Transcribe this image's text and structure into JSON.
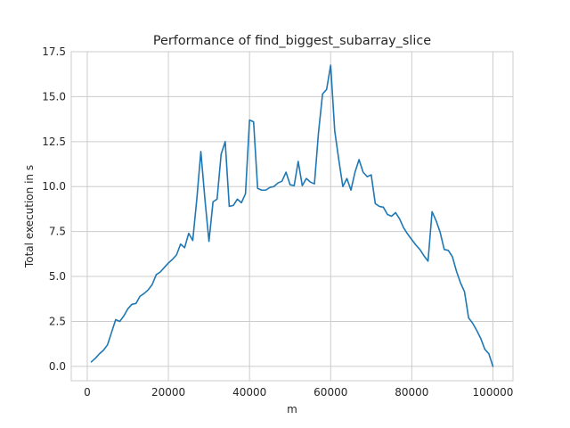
{
  "chart_data": {
    "type": "line",
    "title": "Performance of find_biggest_subarray_slice",
    "xlabel": "m",
    "ylabel": "Total execution in s",
    "xlim": [
      -3950,
      104950
    ],
    "ylim": [
      -0.8,
      17.5
    ],
    "x_ticks": [
      0,
      20000,
      40000,
      60000,
      80000,
      100000
    ],
    "x_tick_labels": [
      "0",
      "20000",
      "40000",
      "60000",
      "80000",
      "100000"
    ],
    "y_ticks": [
      0.0,
      2.5,
      5.0,
      7.5,
      10.0,
      12.5,
      15.0,
      17.5
    ],
    "y_tick_labels": [
      "0.0",
      "2.5",
      "5.0",
      "7.5",
      "10.0",
      "12.5",
      "15.0",
      "17.5"
    ],
    "grid": true,
    "style": "whitegrid",
    "series": [
      {
        "color": "#1f77b4",
        "x": [
          1000,
          2000,
          3000,
          4000,
          5000,
          6000,
          7000,
          8000,
          9000,
          10000,
          11000,
          12000,
          13000,
          14000,
          15000,
          16000,
          17000,
          18000,
          19000,
          20000,
          21000,
          22000,
          23000,
          24000,
          25000,
          26000,
          27000,
          28000,
          29000,
          30000,
          31000,
          32000,
          33000,
          34000,
          35000,
          36000,
          37000,
          38000,
          39000,
          40000,
          41000,
          42000,
          43000,
          44000,
          45000,
          46000,
          47000,
          48000,
          49000,
          50000,
          51000,
          52000,
          53000,
          54000,
          55000,
          56000,
          57000,
          58000,
          59000,
          60000,
          61000,
          62000,
          63000,
          64000,
          65000,
          66000,
          67000,
          68000,
          69000,
          70000,
          71000,
          72000,
          73000,
          74000,
          75000,
          76000,
          77000,
          78000,
          79000,
          80000,
          81000,
          82000,
          83000,
          84000,
          85000,
          86000,
          87000,
          88000,
          89000,
          90000,
          91000,
          92000,
          93000,
          94000,
          95000,
          96000,
          97000,
          98000,
          99000,
          100000
        ],
        "y": [
          0.25,
          0.45,
          0.7,
          0.9,
          1.2,
          1.9,
          2.6,
          2.5,
          2.8,
          3.2,
          3.45,
          3.5,
          3.9,
          4.05,
          4.25,
          4.55,
          5.1,
          5.25,
          5.5,
          5.75,
          5.95,
          6.2,
          6.8,
          6.6,
          7.4,
          7.0,
          9.3,
          11.95,
          9.3,
          6.95,
          9.15,
          9.3,
          11.8,
          12.5,
          8.9,
          8.95,
          9.3,
          9.1,
          9.6,
          13.7,
          13.6,
          9.9,
          9.8,
          9.8,
          9.95,
          10.0,
          10.2,
          10.3,
          10.8,
          10.1,
          10.05,
          11.4,
          10.05,
          10.45,
          10.25,
          10.15,
          13.0,
          15.15,
          15.4,
          16.75,
          13.1,
          11.5,
          10.0,
          10.45,
          9.8,
          10.8,
          11.5,
          10.8,
          10.55,
          10.65,
          9.05,
          8.9,
          8.85,
          8.45,
          8.35,
          8.55,
          8.2,
          7.7,
          7.35,
          7.05,
          6.75,
          6.5,
          6.15,
          5.85,
          8.6,
          8.1,
          7.45,
          6.5,
          6.45,
          6.1,
          5.3,
          4.65,
          4.15,
          2.7,
          2.4,
          2.0,
          1.55,
          0.95,
          0.7,
          0.0
        ]
      }
    ]
  }
}
